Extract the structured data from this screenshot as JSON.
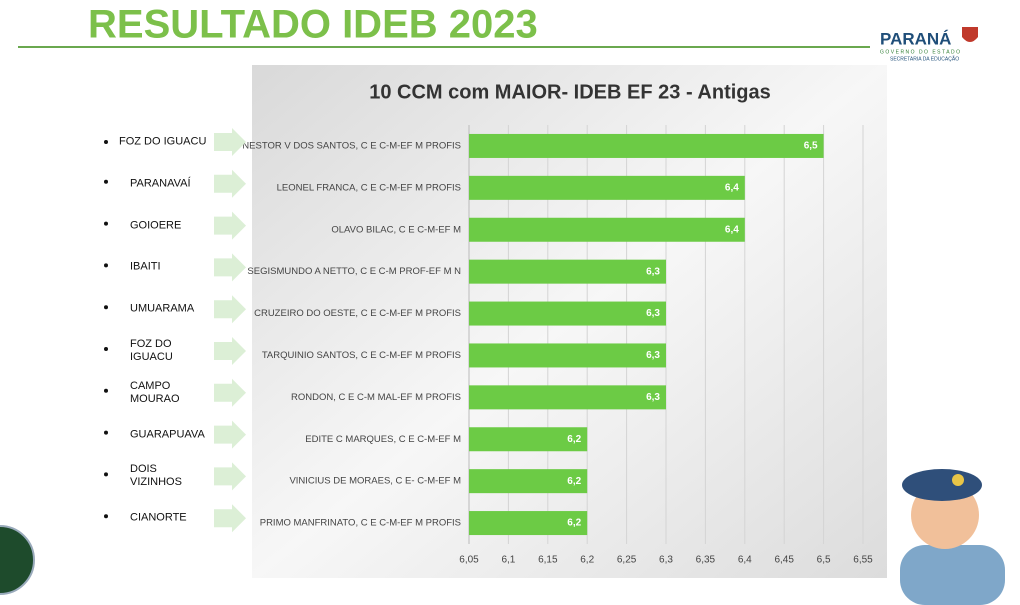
{
  "header": {
    "title": "RESULTADO IDEB 2023",
    "logo": "PARANÁ",
    "logo_sub1": "GOVERNO DO ESTADO",
    "logo_sub2": "SECRETARIA DA EDUCAÇÃO"
  },
  "cities": [
    "FOZ DO IGUACU",
    "PARANAVAÍ",
    "GOIOERE",
    "IBAITI",
    "UMUARAMA",
    "FOZ DO\nIGUACU",
    "CAMPO\nMOURAO",
    "GUARAPUAVA",
    "DOIS\nVIZINHOS",
    "CIANORTE"
  ],
  "chart_data": {
    "type": "bar",
    "orientation": "horizontal",
    "title": "10 CCM com MAIOR- IDEB EF 23 - Antigas",
    "categories": [
      "NESTOR V DOS SANTOS, C E C-M-EF M PROFIS",
      "LEONEL FRANCA, C E C-M-EF M PROFIS",
      "OLAVO BILAC, C E C-M-EF M",
      "SEGISMUNDO A NETTO, C E C-M PROF-EF M N",
      "CRUZEIRO DO OESTE, C E C-M-EF M PROFIS",
      "TARQUINIO SANTOS, C E C-M-EF M PROFIS",
      "RONDON, C E C-M MAL-EF M PROFIS",
      "EDITE C MARQUES, C E C-M-EF M",
      "VINICIUS DE MORAES, C E- C-M-EF M",
      "PRIMO MANFRINATO, C E C-M-EF M PROFIS"
    ],
    "values": [
      6.5,
      6.4,
      6.4,
      6.3,
      6.3,
      6.3,
      6.3,
      6.2,
      6.2,
      6.2
    ],
    "value_labels": [
      "6,5",
      "6,4",
      "6,4",
      "6,3",
      "6,3",
      "6,3",
      "6,3",
      "6,2",
      "6,2",
      "6,2"
    ],
    "color": "#6ccb45",
    "xlim": [
      6.05,
      6.55
    ],
    "xticks": [
      {
        "value": 6.05,
        "label": "6,05"
      },
      {
        "value": 6.1,
        "label": "6,1"
      },
      {
        "value": 6.15,
        "label": "6,15"
      },
      {
        "value": 6.2,
        "label": "6,2"
      },
      {
        "value": 6.25,
        "label": "6,25"
      },
      {
        "value": 6.3,
        "label": "6,3"
      },
      {
        "value": 6.35,
        "label": "6,35"
      },
      {
        "value": 6.4,
        "label": "6,4"
      },
      {
        "value": 6.45,
        "label": "6,45"
      },
      {
        "value": 6.5,
        "label": "6,5"
      },
      {
        "value": 6.55,
        "label": "6,55"
      }
    ],
    "grid": true
  }
}
